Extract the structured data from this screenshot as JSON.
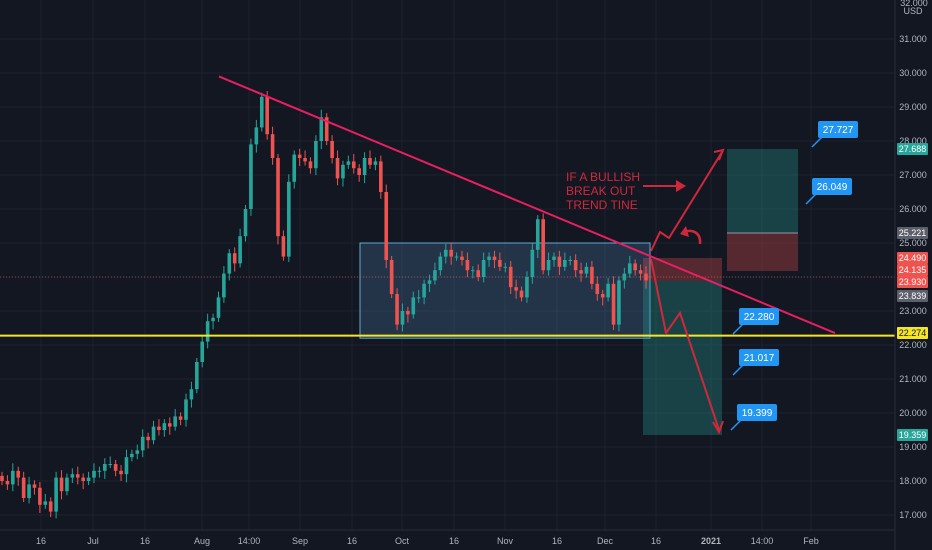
{
  "chart_data": {
    "type": "candlestick",
    "currency": "USD",
    "price_axis": {
      "range": [
        16.8,
        32.0
      ],
      "ticks": [
        17,
        18,
        19,
        20,
        21,
        22,
        23,
        24,
        25,
        26,
        27,
        28,
        29,
        30,
        31
      ],
      "tick_labels": [
        "17.000",
        "18.000",
        "19.000",
        "20.000",
        "21.000",
        "22.000",
        "23.000",
        "24.000",
        "25.000",
        "26.000",
        "27.000",
        "28.000",
        "29.000",
        "30.000",
        "31.000"
      ],
      "top_partial_label": "32.000"
    },
    "time_axis": {
      "labels": [
        "16",
        "Jul",
        "16",
        "Aug",
        "14:00",
        "Sep",
        "16",
        "Oct",
        "16",
        "Nov",
        "16",
        "Dec",
        "16",
        "2021",
        "14:00",
        "Feb"
      ],
      "bold": [
        "2021"
      ]
    },
    "price_tags": [
      {
        "value": "27.688",
        "color": "#26a69a"
      },
      {
        "value": "25.221",
        "color": "#5d606b"
      },
      {
        "value": "24.490",
        "color": "#ef5350"
      },
      {
        "value": "24.135",
        "color": "#ef5350"
      },
      {
        "value": "23.930",
        "color": "#ef5350"
      },
      {
        "value": "23.839",
        "color": "#5d606b"
      },
      {
        "value": "22.274",
        "color": "#f5e625"
      },
      {
        "value": "19.359",
        "color": "#26a69a"
      }
    ],
    "labels": [
      {
        "text": "27.727",
        "price": 27.727
      },
      {
        "text": "26.049",
        "price": 26.049
      },
      {
        "text": "22.280",
        "price": 22.28
      },
      {
        "text": "21.017",
        "price": 21.017
      },
      {
        "text": "19.399",
        "price": 19.399
      }
    ],
    "support_level": 22.274,
    "range_box": {
      "top": 25.0,
      "bottom": 22.2
    },
    "trendline": {
      "start_price": 29.9,
      "end_price": 22.35
    },
    "annotation": "IF A BULLISH\nBREAK OUT\nTREND TINE",
    "closes": [
      18.0,
      17.9,
      18.3,
      18.1,
      17.5,
      17.9,
      17.8,
      17.3,
      17.4,
      17.1,
      18.1,
      17.7,
      18.1,
      18.2,
      18.1,
      18.0,
      18.1,
      18.3,
      18.3,
      18.5,
      18.5,
      18.3,
      18.2,
      18.7,
      18.8,
      18.9,
      19.3,
      19.2,
      19.6,
      19.5,
      19.7,
      19.6,
      19.9,
      19.8,
      20.4,
      20.7,
      21.5,
      22.1,
      22.7,
      22.8,
      23.4,
      24.1,
      24.7,
      24.4,
      25.2,
      26.0,
      27.9,
      28.4,
      29.3,
      28.2,
      27.5,
      25.2,
      24.6,
      26.8,
      27.6,
      27.5,
      27.4,
      27.2,
      28.0,
      28.7,
      28.0,
      27.5,
      26.9,
      27.3,
      27.4,
      27.2,
      27.0,
      27.5,
      27.3,
      27.4,
      26.5,
      24.5,
      23.5,
      22.6,
      23.0,
      22.9,
      23.4,
      23.4,
      23.8,
      23.9,
      24.2,
      24.6,
      24.8,
      24.6,
      24.6,
      24.5,
      24.2,
      24.2,
      24.0,
      24.5,
      24.6,
      24.5,
      24.3,
      24.3,
      23.7,
      23.6,
      23.4,
      24.0,
      24.8,
      25.7,
      24.2,
      24.5,
      24.6,
      24.3,
      24.5,
      24.5,
      24.2,
      24.1,
      24.3,
      23.8,
      23.5,
      23.4,
      23.8,
      22.6,
      23.9,
      24.1,
      24.4,
      24.2,
      24.1,
      23.9
    ],
    "closes_note_omitted": ""
  }
}
